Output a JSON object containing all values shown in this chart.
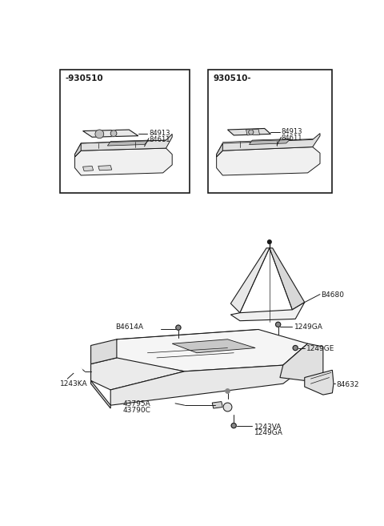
{
  "bg_color": "#ffffff",
  "line_color": "#1a1a1a",
  "box1_label": "-930510",
  "box2_label": "930510-",
  "parts": {
    "84913": "84913",
    "84611": "84611",
    "84680": "B4680",
    "84614A": "B4614A",
    "1249GA_top": "1249GA",
    "1249GE": "1249GE",
    "1243KA": "1243KA",
    "43795A": "43795A",
    "43790C": "43790C",
    "1243VA": "1243VA",
    "1249GA_bot": "1249GA",
    "84632": "84632"
  },
  "figsize": [
    4.8,
    6.57
  ],
  "dpi": 100
}
